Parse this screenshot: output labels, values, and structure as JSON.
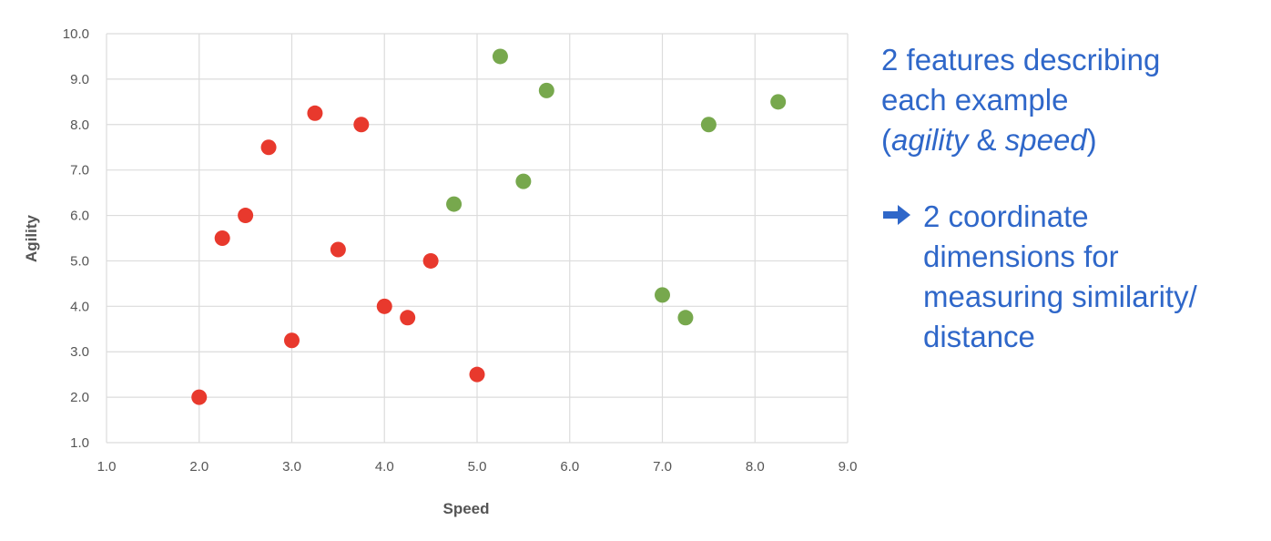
{
  "chart_data": {
    "type": "scatter",
    "title": "",
    "xlabel": "Speed",
    "ylabel": "Agility",
    "xlim": [
      1.0,
      9.0
    ],
    "ylim": [
      1.0,
      10.0
    ],
    "x_ticks": [
      "1.0",
      "2.0",
      "3.0",
      "4.0",
      "5.0",
      "6.0",
      "7.0",
      "8.0",
      "9.0"
    ],
    "y_ticks": [
      "1.0",
      "2.0",
      "3.0",
      "4.0",
      "5.0",
      "6.0",
      "7.0",
      "8.0",
      "9.0",
      "10.0"
    ],
    "grid": true,
    "legend": "none",
    "series": [
      {
        "color": "#e8392d",
        "points": [
          [
            2.0,
            2.0
          ],
          [
            2.25,
            5.5
          ],
          [
            2.5,
            6.0
          ],
          [
            2.75,
            7.5
          ],
          [
            3.0,
            3.25
          ],
          [
            3.25,
            8.25
          ],
          [
            3.5,
            5.25
          ],
          [
            3.75,
            8.0
          ],
          [
            4.0,
            4.0
          ],
          [
            4.25,
            3.75
          ],
          [
            4.5,
            5.0
          ],
          [
            5.0,
            2.5
          ]
        ]
      },
      {
        "color": "#77a84d",
        "points": [
          [
            4.75,
            6.25
          ],
          [
            5.25,
            9.5
          ],
          [
            5.5,
            6.75
          ],
          [
            5.75,
            8.75
          ],
          [
            7.0,
            4.25
          ],
          [
            7.25,
            3.75
          ],
          [
            7.5,
            8.0
          ],
          [
            8.25,
            8.5
          ]
        ]
      }
    ]
  },
  "notes": {
    "line1": "2 features describing",
    "line2": "each example",
    "line3_open": "(",
    "line3_agility": "agility",
    "line3_amp": " & ",
    "line3_speed": "speed",
    "line3_close": ")",
    "bullet_lines": [
      "2 coordinate",
      "dimensions for",
      "measuring similarity/",
      "distance"
    ],
    "arrow_icon": "right-arrow-icon",
    "text_color": "#2f67c9"
  }
}
